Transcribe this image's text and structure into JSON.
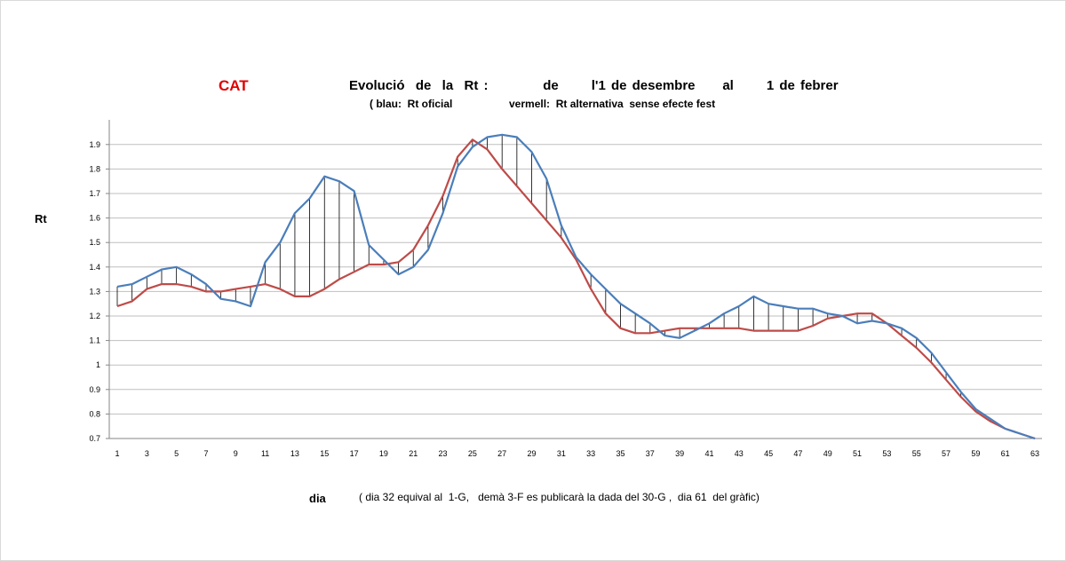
{
  "header": {
    "region": "CAT",
    "title": "Evolució  de  la  Rt :          de      l'1 de desembre     al      1 de febrer",
    "legend_blue": "( blau:  Rt oficial",
    "legend_red": "vermell:  Rt alternativa  sense efecte fest"
  },
  "axes": {
    "ylabel": "Rt",
    "xlabel": "dia",
    "note": "( dia 32 equival al  1-G,   demà 3-F es publicarà la dada del 30-G ,  dia 61  del gràfic)"
  },
  "colors": {
    "official": "#4a7ebb",
    "alternative": "#be4b48",
    "grid": "#bfbfbf",
    "difference_lines": "#000000"
  },
  "chart_data": {
    "type": "line",
    "title": "Evolució de la Rt : de l'1 de desembre al 1 de febrer",
    "xlabel": "dia",
    "ylabel": "Rt",
    "xlim": [
      1,
      63
    ],
    "ylim": [
      0.7,
      1.9
    ],
    "grid": true,
    "x_ticks": [
      1,
      3,
      5,
      7,
      9,
      11,
      13,
      15,
      17,
      19,
      21,
      23,
      25,
      27,
      29,
      31,
      33,
      35,
      37,
      39,
      41,
      43,
      45,
      47,
      49,
      51,
      53,
      55,
      57,
      59,
      61,
      63
    ],
    "y_ticks": [
      "0.7",
      "0.8",
      "0.9",
      "1",
      "1.1",
      "1.2",
      "1.3",
      "1.4",
      "1.5",
      "1.6",
      "1.7",
      "1.8",
      "1.9"
    ],
    "series": [
      {
        "name": "blau: Rt oficial",
        "color": "#4a7ebb",
        "values": [
          1.32,
          1.33,
          1.36,
          1.39,
          1.4,
          1.37,
          1.33,
          1.27,
          1.26,
          1.24,
          1.42,
          1.5,
          1.62,
          1.68,
          1.77,
          1.75,
          1.71,
          1.49,
          1.43,
          1.37,
          1.4,
          1.47,
          1.62,
          1.81,
          1.89,
          1.93,
          1.94,
          1.93,
          1.87,
          1.76,
          1.57,
          1.44,
          1.37,
          1.31,
          1.25,
          1.21,
          1.17,
          1.12,
          1.11,
          1.14,
          1.17,
          1.21,
          1.24,
          1.28,
          1.25,
          1.24,
          1.23,
          1.23,
          1.21,
          1.2,
          1.17,
          1.18,
          1.17,
          1.15,
          1.11,
          1.05,
          0.97,
          0.89,
          0.82,
          0.78,
          0.74,
          0.72,
          0.7
        ]
      },
      {
        "name": "vermell: Rt alternativa sense efecte fest",
        "color": "#be4b48",
        "values": [
          1.24,
          1.26,
          1.31,
          1.33,
          1.33,
          1.32,
          1.3,
          1.3,
          1.31,
          1.32,
          1.33,
          1.31,
          1.28,
          1.28,
          1.31,
          1.35,
          1.38,
          1.41,
          1.41,
          1.42,
          1.47,
          1.57,
          1.69,
          1.85,
          1.92,
          1.88,
          1.8,
          1.73,
          1.66,
          1.59,
          1.52,
          1.43,
          1.31,
          1.21,
          1.15,
          1.13,
          1.13,
          1.14,
          1.15,
          1.15,
          1.15,
          1.15,
          1.15,
          1.14,
          1.14,
          1.14,
          1.14,
          1.16,
          1.19,
          1.2,
          1.21,
          1.21,
          1.17,
          1.12,
          1.07,
          1.01,
          0.94,
          0.87,
          0.81,
          0.77,
          0.74,
          0.72,
          0.7
        ]
      }
    ]
  }
}
